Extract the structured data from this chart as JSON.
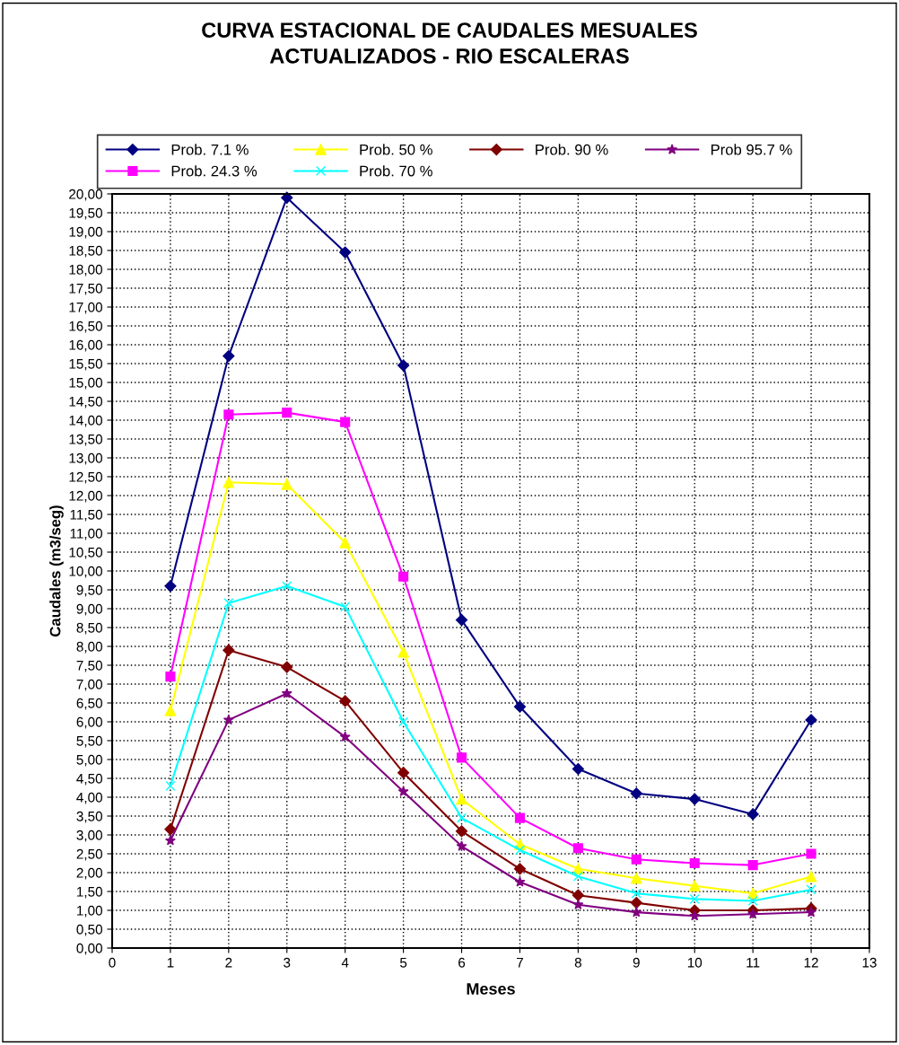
{
  "chart_data": {
    "type": "line",
    "title": "CURVA ESTACIONAL DE CAUDALES MESUALES\nACTUALIZADOS - RIO ESCALERAS",
    "xlabel": "Meses",
    "ylabel": "Caudales (m3/seg)",
    "x": [
      1,
      2,
      3,
      4,
      5,
      6,
      7,
      8,
      9,
      10,
      11,
      12
    ],
    "series": [
      {
        "name": "Prob. 7.1 %",
        "color": "#000080",
        "marker": "diamond",
        "values": [
          9.6,
          15.7,
          19.9,
          18.45,
          15.45,
          8.7,
          6.4,
          4.75,
          4.1,
          3.95,
          3.55,
          6.05
        ]
      },
      {
        "name": "Prob. 24.3 %",
        "color": "#ff00ff",
        "marker": "square",
        "values": [
          7.2,
          14.15,
          14.2,
          13.95,
          9.85,
          5.05,
          3.45,
          2.65,
          2.35,
          2.25,
          2.2,
          2.5
        ]
      },
      {
        "name": "Prob. 50 %",
        "color": "#ffff00",
        "marker": "triangle",
        "values": [
          6.3,
          12.35,
          12.3,
          10.75,
          7.85,
          3.95,
          2.75,
          2.1,
          1.85,
          1.65,
          1.45,
          1.9
        ]
      },
      {
        "name": "Prob. 70 %",
        "color": "#00ffff",
        "marker": "cross",
        "values": [
          4.3,
          9.15,
          9.6,
          9.05,
          6.0,
          3.45,
          2.6,
          1.9,
          1.45,
          1.3,
          1.25,
          1.55
        ]
      },
      {
        "name": "Prob. 90 %",
        "color": "#800000",
        "marker": "diamond",
        "values": [
          3.15,
          7.9,
          7.45,
          6.55,
          4.65,
          3.1,
          2.1,
          1.4,
          1.2,
          1.0,
          1.0,
          1.05
        ]
      },
      {
        "name": "Prob 95.7 %",
        "color": "#800080",
        "marker": "star",
        "values": [
          2.85,
          6.05,
          6.75,
          5.6,
          4.15,
          2.7,
          1.75,
          1.15,
          0.95,
          0.85,
          0.9,
          0.95
        ]
      }
    ],
    "xlim": [
      0,
      13
    ],
    "xticks": [
      0,
      1,
      2,
      3,
      4,
      5,
      6,
      7,
      8,
      9,
      10,
      11,
      12,
      13
    ],
    "ylim": [
      0,
      20
    ],
    "yticks": [
      {
        "value": 0,
        "label": "0,00"
      },
      {
        "value": 0.5,
        "label": "0,50"
      },
      {
        "value": 1,
        "label": "1,00"
      },
      {
        "value": 1.5,
        "label": "1,50"
      },
      {
        "value": 2,
        "label": "2,00"
      },
      {
        "value": 2.5,
        "label": "2,50"
      },
      {
        "value": 3,
        "label": "3,00"
      },
      {
        "value": 3.5,
        "label": "3,50"
      },
      {
        "value": 4,
        "label": "4,00"
      },
      {
        "value": 4.5,
        "label": "4,50"
      },
      {
        "value": 5,
        "label": "5,00"
      },
      {
        "value": 5.5,
        "label": "5,50"
      },
      {
        "value": 6,
        "label": "6,00"
      },
      {
        "value": 6.5,
        "label": "6,50"
      },
      {
        "value": 7,
        "label": "7,00"
      },
      {
        "value": 7.5,
        "label": "7,50"
      },
      {
        "value": 8,
        "label": "8,00"
      },
      {
        "value": 8.5,
        "label": "8,50"
      },
      {
        "value": 9,
        "label": "9,00"
      },
      {
        "value": 9.5,
        "label": "9,50"
      },
      {
        "value": 10,
        "label": "10,00"
      },
      {
        "value": 10.5,
        "label": "10,50"
      },
      {
        "value": 11,
        "label": "11,00"
      },
      {
        "value": 11.5,
        "label": "11,50"
      },
      {
        "value": 12,
        "label": "12,00"
      },
      {
        "value": 12.5,
        "label": "12,50"
      },
      {
        "value": 13,
        "label": "13,00"
      },
      {
        "value": 13.5,
        "label": "13,50"
      },
      {
        "value": 14,
        "label": "14,00"
      },
      {
        "value": 14.5,
        "label": "14,50"
      },
      {
        "value": 15,
        "label": "15,00"
      },
      {
        "value": 15.5,
        "label": "15,50"
      },
      {
        "value": 16,
        "label": "16,00"
      },
      {
        "value": 16.5,
        "label": "16,50"
      },
      {
        "value": 17,
        "label": "17,00"
      },
      {
        "value": 17.5,
        "label": "17,50"
      },
      {
        "value": 18,
        "label": "18,00"
      },
      {
        "value": 18.5,
        "label": "18,50"
      },
      {
        "value": 19,
        "label": "19,00"
      },
      {
        "value": 19.5,
        "label": "19,50"
      },
      {
        "value": 20,
        "label": "20,00"
      }
    ],
    "grid": true,
    "legend": "top",
    "line_style": "solid"
  }
}
